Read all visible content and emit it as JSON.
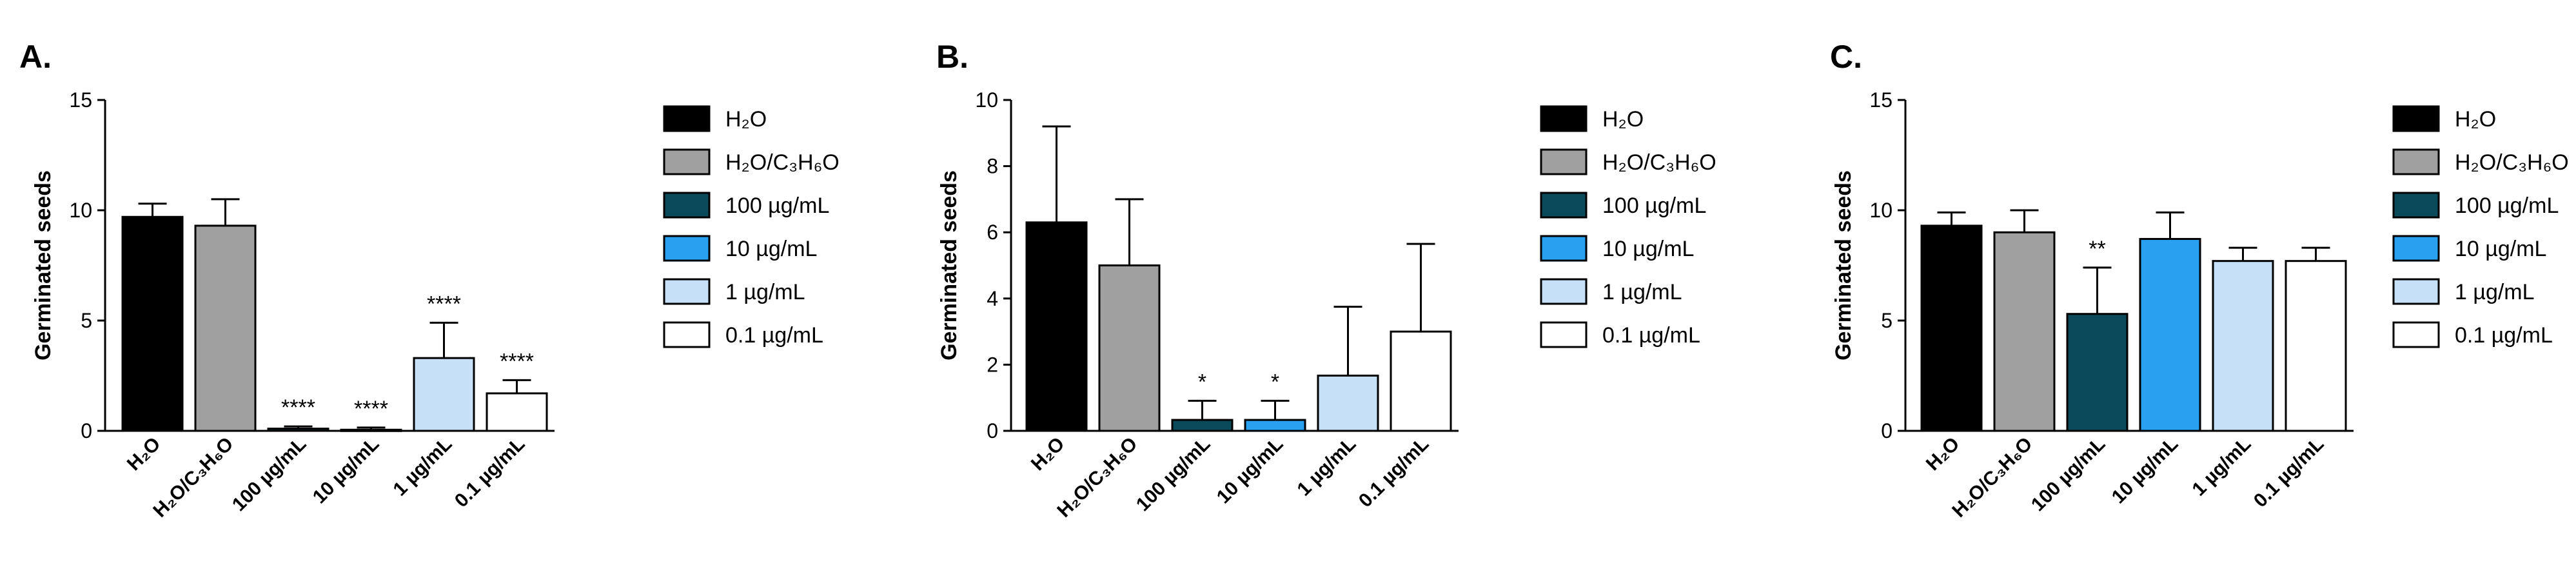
{
  "colors": {
    "H2O": "#000000",
    "H2O/C3H6O": "#a0a0a0",
    "100 µg/mL": "#0b4a5a",
    "10 µg/mL": "#2aa0f0",
    "1 µg/mL": "#c6e1f7",
    "0.1 µg/mL": "#ffffff"
  },
  "chart_data": [
    {
      "panel_label": "A.",
      "type": "bar",
      "ylabel": "Germinated seeds",
      "ylim": [
        0,
        15
      ],
      "yticks": [
        "0",
        "5",
        "10",
        "15"
      ],
      "categories": [
        "H₂O",
        "H₂O/C₃H₆O",
        "100 µg/mL",
        "10 µg/mL",
        "1 µg/mL",
        "0.1 µg/mL"
      ],
      "values": [
        9.7,
        9.3,
        0.1,
        0.05,
        3.3,
        1.7
      ],
      "errors": [
        0.6,
        1.2,
        0.1,
        0.1,
        1.6,
        0.6
      ],
      "significance": [
        "",
        "",
        "****",
        "****",
        "****",
        "****"
      ],
      "legend": [
        "H₂O",
        "H₂O/C₃H₆O",
        "100 µg/mL",
        "10 µg/mL",
        "1 µg/mL",
        "0.1 µg/mL"
      ]
    },
    {
      "panel_label": "B.",
      "type": "bar",
      "ylabel": "Germinated seeds",
      "ylim": [
        0,
        10
      ],
      "yticks": [
        "0",
        "2",
        "4",
        "6",
        "8",
        "10"
      ],
      "categories": [
        "H₂O",
        "H₂O/C₃H₆O",
        "100 µg/mL",
        "10 µg/mL",
        "1 µg/mL",
        "0.1 µg/mL"
      ],
      "values": [
        6.3,
        5.0,
        0.33,
        0.33,
        1.67,
        3.0
      ],
      "errors": [
        2.9,
        2.0,
        0.58,
        0.58,
        2.08,
        2.65
      ],
      "significance": [
        "",
        "",
        "*",
        "*",
        "",
        ""
      ],
      "legend": [
        "H₂O",
        "H₂O/C₃H₆O",
        "100 µg/mL",
        "10 µg/mL",
        "1 µg/mL",
        "0.1 µg/mL"
      ]
    },
    {
      "panel_label": "C.",
      "type": "bar",
      "ylabel": "Germinated seeds",
      "ylim": [
        0,
        15
      ],
      "yticks": [
        "0",
        "5",
        "10",
        "15"
      ],
      "categories": [
        "H₂O",
        "H₂O/C₃H₆O",
        "100 µg/mL",
        "10 µg/mL",
        "1 µg/mL",
        "0.1 µg/mL"
      ],
      "values": [
        9.3,
        9.0,
        5.3,
        8.7,
        7.7,
        7.7
      ],
      "errors": [
        0.6,
        1.0,
        2.1,
        1.2,
        0.6,
        0.6
      ],
      "significance": [
        "",
        "",
        "**",
        "",
        "",
        ""
      ],
      "legend": [
        "H₂O",
        "H₂O/C₃H₆O",
        "100 µg/mL",
        "10 µg/mL",
        "1 µg/mL",
        "0.1 µg/mL"
      ]
    }
  ]
}
